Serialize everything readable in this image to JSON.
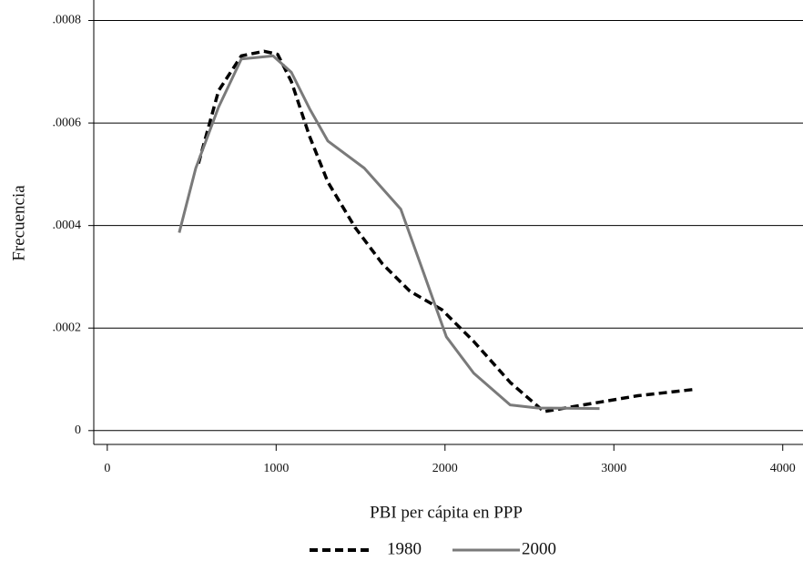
{
  "chart_data": {
    "type": "line",
    "x_label": "PBI per cápita en PPP",
    "y_label": "Frecuencia",
    "xlim": [
      -80,
      4120
    ],
    "ylim": [
      -2.7e-05,
      0.00084
    ],
    "xticks": [
      0,
      1000,
      2000,
      3000,
      4000
    ],
    "yticks": [
      0,
      {
        "value": 0.0002,
        "label": ".0002"
      },
      {
        "value": 0.0004,
        "label": ".0004"
      },
      {
        "value": 0.0006,
        "label": ".0006"
      },
      {
        "value": 0.0008,
        "label": ".0008"
      }
    ],
    "grid": true,
    "legend": "bottom",
    "series": [
      {
        "name": "1980",
        "color": "#000000",
        "style": "dashed",
        "x": [
          540,
          659,
          794,
          928,
          1009,
          1090,
          1198,
          1306,
          1468,
          1630,
          1792,
          1981,
          2170,
          2386,
          2586,
          2818,
          3142,
          3466
        ],
        "values": [
          0.000521,
          0.000663,
          0.000731,
          0.00074,
          0.000734,
          0.000681,
          0.000574,
          0.000485,
          0.000396,
          0.000325,
          0.000272,
          0.000236,
          0.000174,
          9.4e-05,
          3.7e-05,
          5e-05,
          6.8e-05,
          8e-05
        ]
      },
      {
        "name": "2000",
        "color": "#7a7a7a",
        "style": "solid",
        "x": [
          426,
          524,
          659,
          794,
          982,
          1090,
          1198,
          1306,
          1522,
          1738,
          1873,
          2008,
          2170,
          2386,
          2548,
          2915
        ],
        "values": [
          0.000386,
          0.000512,
          0.000631,
          0.000725,
          0.000731,
          0.000699,
          0.000628,
          0.000565,
          0.000512,
          0.000432,
          0.000308,
          0.000183,
          0.000112,
          5e-05,
          4.4e-05,
          4.3e-05
        ]
      }
    ]
  }
}
